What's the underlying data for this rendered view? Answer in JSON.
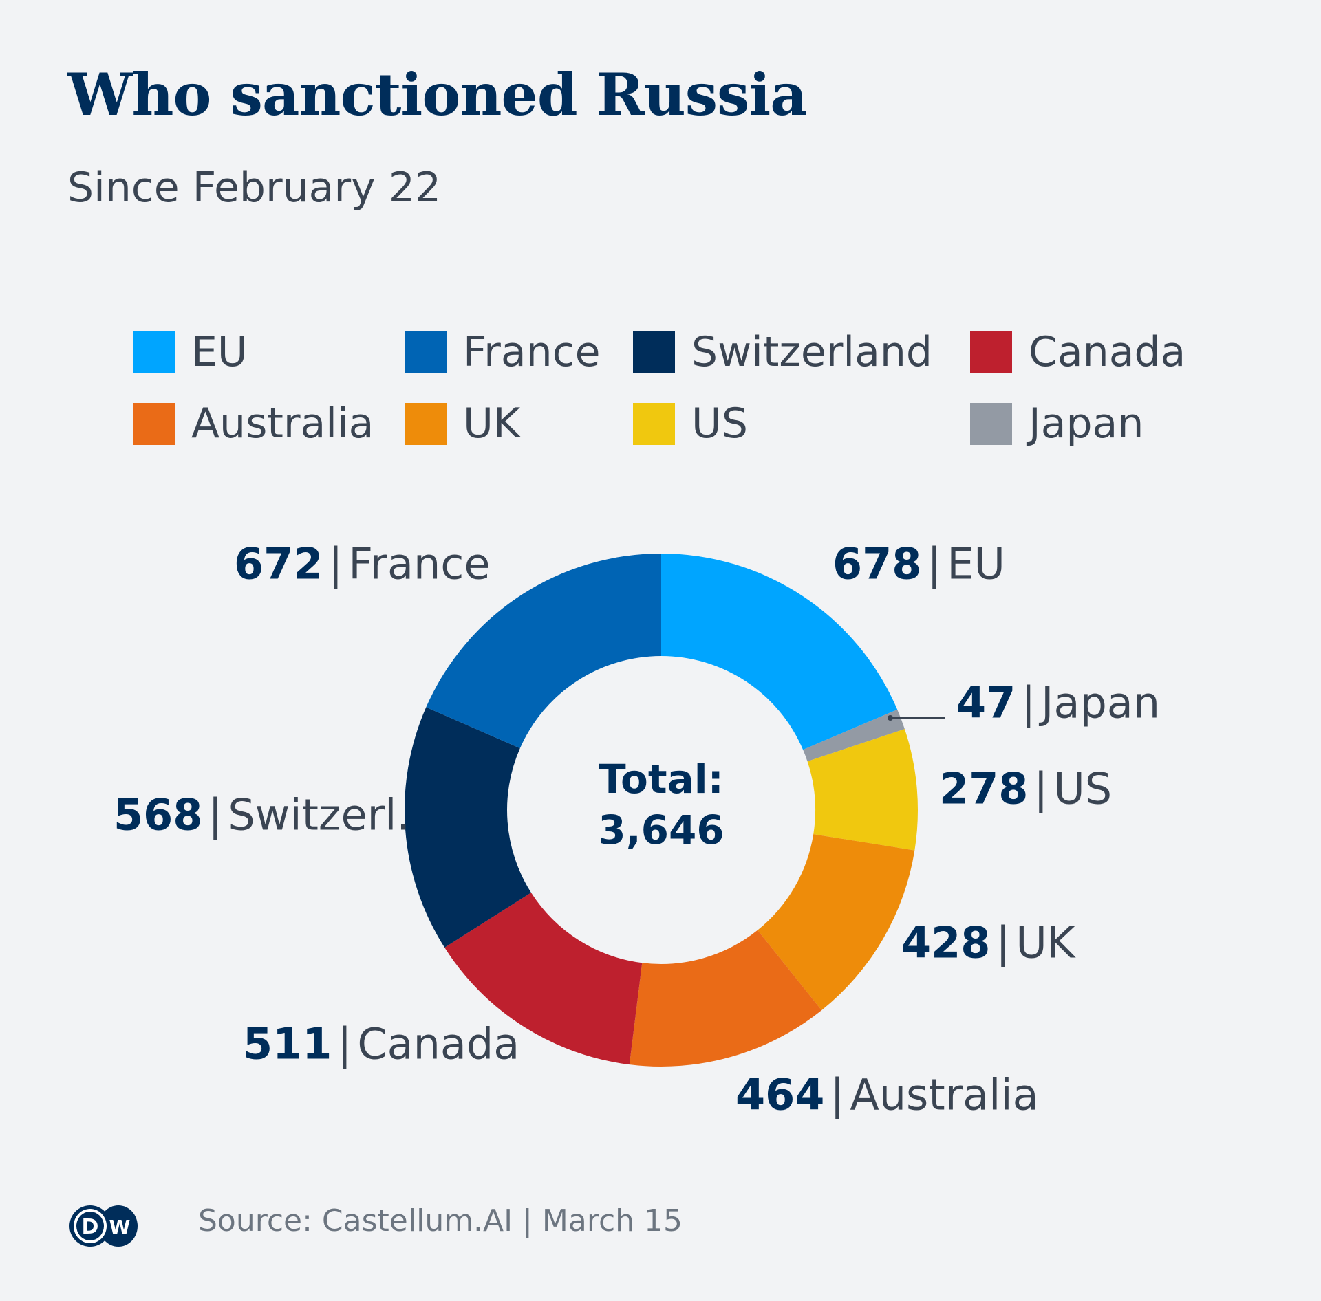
{
  "chart_data": {
    "type": "pie",
    "variant": "donut",
    "title": "Who sanctioned Russia",
    "subtitle": "Since February 22",
    "categories": [
      "EU",
      "Japan",
      "US",
      "UK",
      "Australia",
      "Canada",
      "Switzerland",
      "France"
    ],
    "values": [
      678,
      47,
      278,
      428,
      464,
      511,
      568,
      672
    ],
    "slice_labels": [
      "EU",
      "Japan",
      "US",
      "UK",
      "Australia",
      "Canada",
      "Switzerl.",
      "France"
    ],
    "colors": [
      "#00a5ff",
      "#939aa4",
      "#f0c80f",
      "#ee8c0a",
      "#ea6b17",
      "#be202e",
      "#002d5a",
      "#0064b4"
    ],
    "center_label": {
      "line1": "Total:",
      "line2": "3,646"
    },
    "legend": [
      {
        "label": "EU",
        "color": "#00a5ff"
      },
      {
        "label": "France",
        "color": "#0064b4"
      },
      {
        "label": "Switzerland",
        "color": "#002d5a"
      },
      {
        "label": "Canada",
        "color": "#be202e"
      },
      {
        "label": "Australia",
        "color": "#ea6b17"
      },
      {
        "label": "UK",
        "color": "#ee8c0a"
      },
      {
        "label": "US",
        "color": "#f0c80f"
      },
      {
        "label": "Japan",
        "color": "#939aa4"
      }
    ],
    "legend_placement": "top"
  },
  "footer": {
    "logo": "DW",
    "source": "Source: Castellum.AI | March 15"
  },
  "separator": "|"
}
